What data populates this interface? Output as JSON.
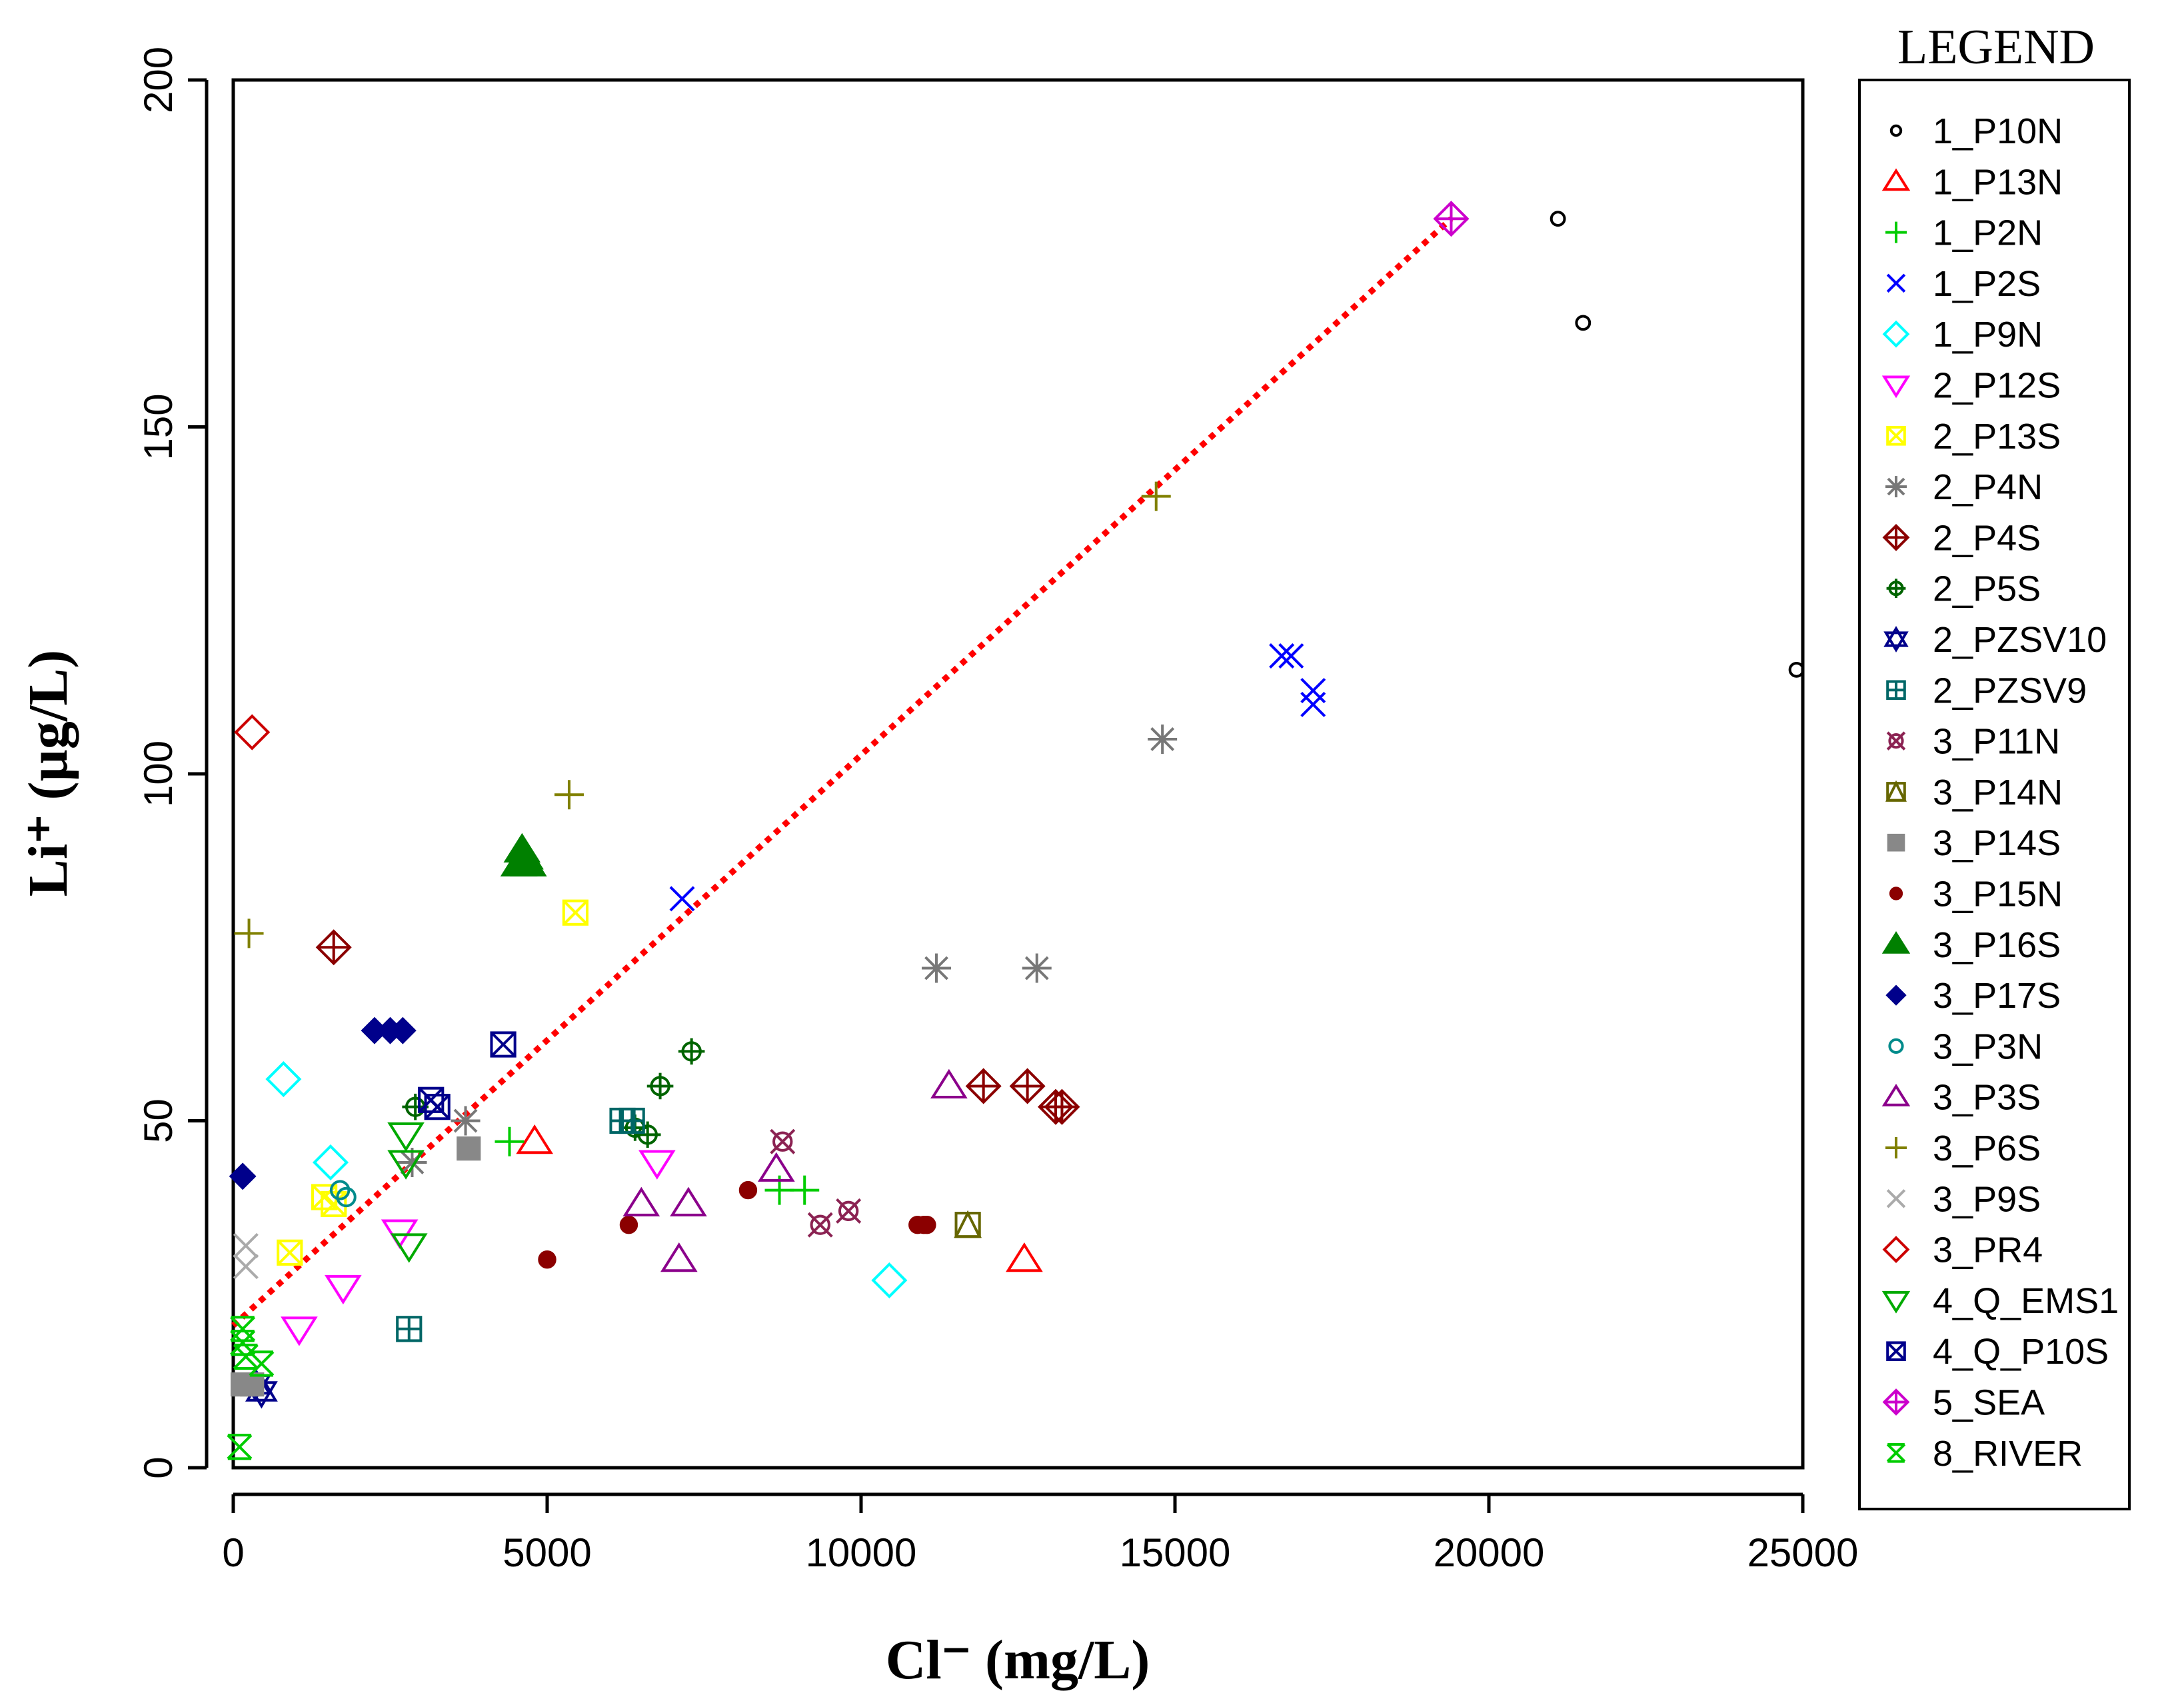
{
  "chart_data": {
    "type": "scatter",
    "title": "",
    "xlabel": "Cl⁻ (mg/L)",
    "ylabel": "Li⁺ (µg/L)",
    "xlim": [
      0,
      25000
    ],
    "ylim": [
      0,
      200
    ],
    "xticks": [
      0,
      5000,
      10000,
      15000,
      20000,
      25000
    ],
    "yticks": [
      0,
      50,
      100,
      150,
      200
    ],
    "legend_title": "LEGEND",
    "trendline": {
      "style": "dotted",
      "color": "#ff0000",
      "x": [
        0,
        19400
      ],
      "y": [
        20.5,
        180
      ]
    },
    "series": [
      {
        "name": "1_P10N",
        "marker": "circle",
        "color": "#000000",
        "points": [
          [
            21100,
            180
          ],
          [
            21500,
            165
          ],
          [
            24900,
            115
          ]
        ]
      },
      {
        "name": "1_P13N",
        "marker": "triangle-up",
        "color": "#ff0000",
        "points": [
          [
            4800,
            47
          ],
          [
            12600,
            30
          ]
        ]
      },
      {
        "name": "1_P2N",
        "marker": "plus",
        "color": "#00cc00",
        "points": [
          [
            4400,
            47
          ],
          [
            8700,
            40
          ],
          [
            9100,
            40
          ]
        ]
      },
      {
        "name": "1_P2S",
        "marker": "x",
        "color": "#0000ff",
        "points": [
          [
            7150,
            82
          ],
          [
            16700,
            117
          ],
          [
            16850,
            117
          ],
          [
            17200,
            112
          ],
          [
            17200,
            110
          ]
        ]
      },
      {
        "name": "1_P9N",
        "marker": "diamond",
        "color": "#00ffff",
        "points": [
          [
            800,
            56
          ],
          [
            1550,
            44
          ],
          [
            10450,
            27
          ]
        ]
      },
      {
        "name": "2_P12S",
        "marker": "triangle-down",
        "color": "#ff00ff",
        "points": [
          [
            2650,
            34
          ],
          [
            1750,
            26
          ],
          [
            1050,
            20
          ],
          [
            6750,
            44
          ]
        ]
      },
      {
        "name": "2_P13S",
        "marker": "square-x",
        "color": "#ffff00",
        "points": [
          [
            1450,
            39
          ],
          [
            1600,
            38
          ],
          [
            900,
            31
          ],
          [
            5450,
            80
          ]
        ]
      },
      {
        "name": "2_P4N",
        "marker": "asterisk",
        "color": "#777777",
        "points": [
          [
            2850,
            44
          ],
          [
            3700,
            50
          ],
          [
            11200,
            72
          ],
          [
            12800,
            72
          ],
          [
            14800,
            105
          ]
        ]
      },
      {
        "name": "2_P4S",
        "marker": "diamond-plus",
        "color": "#8b0000",
        "points": [
          [
            1600,
            75
          ],
          [
            11950,
            55
          ],
          [
            12650,
            55
          ],
          [
            13100,
            52
          ],
          [
            13200,
            52
          ]
        ]
      },
      {
        "name": "2_P5S",
        "marker": "circle-plus",
        "color": "#006400",
        "points": [
          [
            2900,
            52
          ],
          [
            6400,
            49
          ],
          [
            6600,
            48
          ],
          [
            6800,
            55
          ],
          [
            7300,
            60
          ]
        ]
      },
      {
        "name": "2_PZSV10",
        "marker": "star-david",
        "color": "#00008b",
        "points": [
          [
            350,
            12
          ],
          [
            450,
            11
          ]
        ]
      },
      {
        "name": "2_PZSV9",
        "marker": "square-plus",
        "color": "#006666",
        "points": [
          [
            2800,
            20
          ],
          [
            6200,
            50
          ],
          [
            6350,
            50
          ]
        ]
      },
      {
        "name": "3_P11N",
        "marker": "x-circle",
        "color": "#8b2252",
        "points": [
          [
            8750,
            47
          ],
          [
            9350,
            35
          ],
          [
            9800,
            37
          ]
        ]
      },
      {
        "name": "3_P14N",
        "marker": "square-triangle",
        "color": "#666600",
        "points": [
          [
            11700,
            35
          ]
        ]
      },
      {
        "name": "3_P14S",
        "marker": "filled-square",
        "color": "#888888",
        "points": [
          [
            3750,
            46
          ],
          [
            150,
            12
          ],
          [
            300,
            12
          ]
        ]
      },
      {
        "name": "3_P15N",
        "marker": "filled-circle",
        "color": "#8b0000",
        "points": [
          [
            5000,
            30
          ],
          [
            6300,
            35
          ],
          [
            8200,
            40
          ],
          [
            10900,
            35
          ],
          [
            11000,
            35
          ],
          [
            11050,
            35
          ]
        ]
      },
      {
        "name": "3_P16S",
        "marker": "filled-triangle",
        "color": "#008000",
        "points": [
          [
            4550,
            87
          ],
          [
            4650,
            88
          ],
          [
            4700,
            87
          ],
          [
            4600,
            89
          ]
        ]
      },
      {
        "name": "3_P17S",
        "marker": "filled-diamond",
        "color": "#00008b",
        "points": [
          [
            150,
            42
          ],
          [
            2250,
            63
          ],
          [
            2500,
            63
          ],
          [
            2700,
            63
          ]
        ]
      },
      {
        "name": "3_P3N",
        "marker": "small-circle",
        "color": "#008b8b",
        "points": [
          [
            1700,
            40
          ],
          [
            1800,
            39
          ]
        ]
      },
      {
        "name": "3_P3S",
        "marker": "triangle-up",
        "color": "#8b008b",
        "points": [
          [
            6500,
            38
          ],
          [
            7100,
            30
          ],
          [
            7250,
            38
          ],
          [
            8650,
            43
          ],
          [
            11400,
            55
          ]
        ]
      },
      {
        "name": "3_P6S",
        "marker": "plus",
        "color": "#808000",
        "points": [
          [
            250,
            77
          ],
          [
            5350,
            97
          ],
          [
            14700,
            140
          ]
        ]
      },
      {
        "name": "3_P9S",
        "marker": "x",
        "color": "#aaaaaa",
        "points": [
          [
            200,
            32
          ],
          [
            200,
            29
          ]
        ]
      },
      {
        "name": "3_PR4",
        "marker": "diamond",
        "color": "#cc0000",
        "points": [
          [
            300,
            106
          ]
        ]
      },
      {
        "name": "4_Q_EMS1",
        "marker": "triangle-down",
        "color": "#00aa00",
        "points": [
          [
            2750,
            48
          ],
          [
            2750,
            44
          ],
          [
            2800,
            32
          ]
        ]
      },
      {
        "name": "4_Q_P10S",
        "marker": "square-x",
        "color": "#00008b",
        "points": [
          [
            3150,
            53
          ],
          [
            3250,
            52
          ],
          [
            4300,
            61
          ]
        ]
      },
      {
        "name": "5_SEA",
        "marker": "diamond-plus",
        "color": "#cc00cc",
        "points": [
          [
            19400,
            180
          ]
        ]
      },
      {
        "name": "8_RIVER",
        "marker": "x-box",
        "color": "#00cc00",
        "points": [
          [
            150,
            20
          ],
          [
            150,
            18
          ],
          [
            200,
            16
          ],
          [
            450,
            15
          ],
          [
            100,
            3
          ]
        ]
      }
    ]
  }
}
